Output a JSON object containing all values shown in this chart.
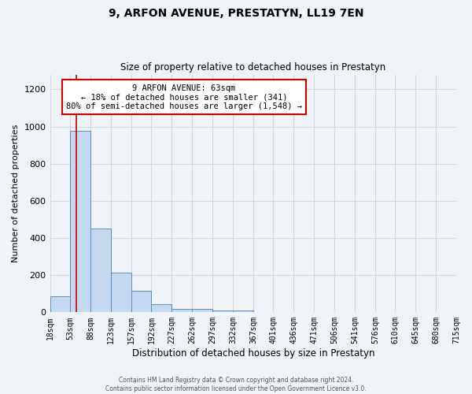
{
  "title": "9, ARFON AVENUE, PRESTATYN, LL19 7EN",
  "subtitle": "Size of property relative to detached houses in Prestatyn",
  "xlabel": "Distribution of detached houses by size in Prestatyn",
  "ylabel": "Number of detached properties",
  "bar_values": [
    85,
    975,
    450,
    215,
    115,
    45,
    20,
    18,
    10,
    8,
    0,
    0,
    0,
    0,
    0,
    0,
    0,
    0,
    0,
    0
  ],
  "bin_labels": [
    "18sqm",
    "53sqm",
    "88sqm",
    "123sqm",
    "157sqm",
    "192sqm",
    "227sqm",
    "262sqm",
    "297sqm",
    "332sqm",
    "367sqm",
    "401sqm",
    "436sqm",
    "471sqm",
    "506sqm",
    "541sqm",
    "576sqm",
    "610sqm",
    "645sqm",
    "680sqm",
    "715sqm"
  ],
  "bar_color": "#c5d8f0",
  "bar_edge_color": "#5a8fc2",
  "grid_color": "#d0d8e4",
  "background_color": "#f0f4f8",
  "vline_color": "#cc0000",
  "annotation_title": "9 ARFON AVENUE: 63sqm",
  "annotation_line1": "← 18% of detached houses are smaller (341)",
  "annotation_line2": "80% of semi-detached houses are larger (1,548) →",
  "annotation_box_color": "#ffffff",
  "annotation_border_color": "#cc0000",
  "ylim": [
    0,
    1280
  ],
  "yticks": [
    0,
    200,
    400,
    600,
    800,
    1000,
    1200
  ],
  "footer_line1": "Contains HM Land Registry data © Crown copyright and database right 2024.",
  "footer_line2": "Contains public sector information licensed under the Open Government Licence v3.0.",
  "bin_edges": [
    18,
    53,
    88,
    123,
    157,
    192,
    227,
    262,
    297,
    332,
    367,
    401,
    436,
    471,
    506,
    541,
    576,
    610,
    645,
    680,
    715
  ]
}
